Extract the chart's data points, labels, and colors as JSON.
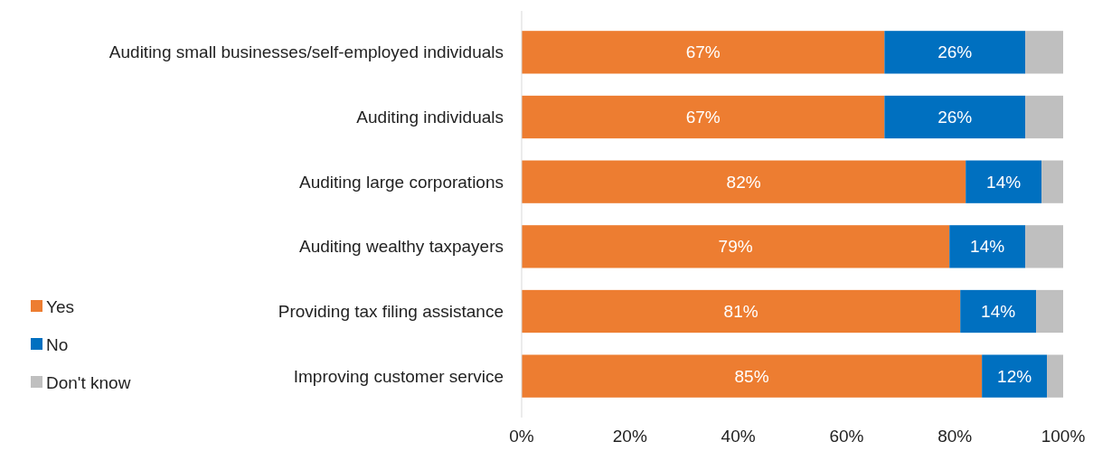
{
  "chart_data": {
    "type": "bar",
    "orientation": "horizontal",
    "stacked": true,
    "categories": [
      "Auditing small businesses/self-employed individuals",
      "Auditing individuals",
      "Auditing large corporations",
      "Auditing wealthy taxpayers",
      "Providing tax filing assistance",
      "Improving customer service"
    ],
    "series": [
      {
        "name": "Yes",
        "color": "#ed7d31",
        "values": [
          67,
          67,
          82,
          79,
          81,
          85
        ],
        "value_labels": [
          "67%",
          "67%",
          "82%",
          "79%",
          "81%",
          "85%"
        ]
      },
      {
        "name": "No",
        "color": "#0070c0",
        "values": [
          26,
          26,
          14,
          14,
          14,
          12
        ],
        "value_labels": [
          "26%",
          "26%",
          "14%",
          "14%",
          "14%",
          "12%"
        ]
      },
      {
        "name": "Don't know",
        "color": "#bfbfbf",
        "values": [
          7,
          7,
          4,
          7,
          5,
          3
        ]
      }
    ],
    "xlim": [
      0,
      100
    ],
    "xticks": [
      {
        "value": 0,
        "label": "0%"
      },
      {
        "value": 20,
        "label": "20%"
      },
      {
        "value": 40,
        "label": "40%"
      },
      {
        "value": 60,
        "label": "60%"
      },
      {
        "value": 80,
        "label": "80%"
      },
      {
        "value": 100,
        "label": "100%"
      }
    ],
    "grid": false,
    "legend": "left"
  }
}
